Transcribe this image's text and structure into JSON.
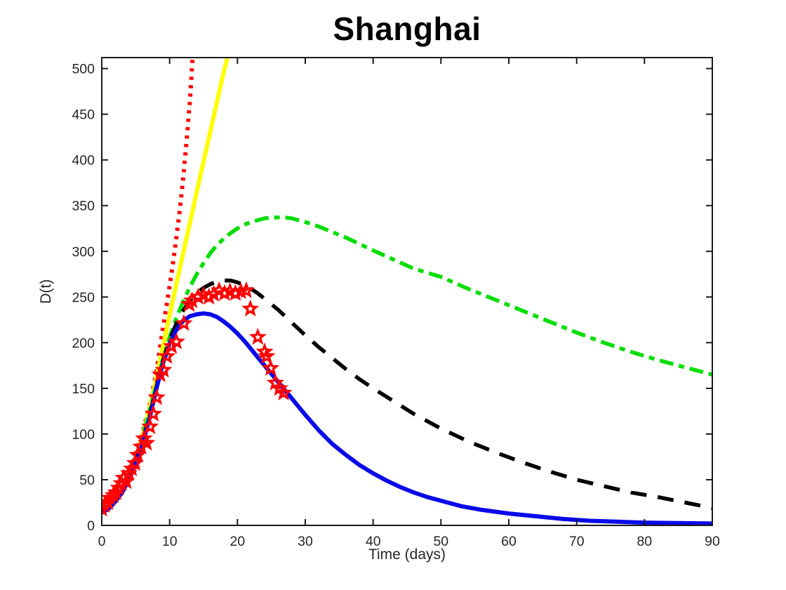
{
  "chart": {
    "title": "Shanghai",
    "xlabel": "Time (days)",
    "ylabel": "D(t)"
  },
  "chart_data": {
    "type": "line",
    "title": "Shanghai",
    "xlabel": "Time (days)",
    "ylabel": "D(t)",
    "xlim": [
      0,
      90
    ],
    "ylim": [
      0,
      512
    ],
    "xticks": [
      0,
      10,
      20,
      30,
      40,
      50,
      60,
      70,
      80,
      90
    ],
    "yticks": [
      0,
      50,
      100,
      150,
      200,
      250,
      300,
      350,
      400,
      450,
      500
    ],
    "grid": false,
    "legend": "none",
    "box": true,
    "tick_direction": "in",
    "axis_color": "#1a1a1a",
    "series": [
      {
        "name": "red-dotted-model",
        "color": "#ff0000",
        "style": "dotted",
        "width": 6,
        "points": [
          [
            0,
            16
          ],
          [
            1,
            21
          ],
          [
            2,
            29
          ],
          [
            3,
            41
          ],
          [
            4,
            57
          ],
          [
            5,
            77
          ],
          [
            6,
            101
          ],
          [
            7,
            130
          ],
          [
            8,
            165
          ],
          [
            9,
            215
          ],
          [
            10,
            262
          ],
          [
            10.5,
            287
          ],
          [
            11,
            315
          ],
          [
            11.5,
            345
          ],
          [
            12,
            380
          ],
          [
            12.5,
            420
          ],
          [
            13,
            465
          ],
          [
            13.4,
            513
          ]
        ]
      },
      {
        "name": "yellow-solid-model",
        "color": "#ffff00",
        "style": "solid",
        "width": 6,
        "points": [
          [
            0,
            15
          ],
          [
            1,
            19
          ],
          [
            2,
            27
          ],
          [
            3,
            38
          ],
          [
            4,
            54
          ],
          [
            5,
            74
          ],
          [
            6,
            98
          ],
          [
            7,
            127
          ],
          [
            8,
            160
          ],
          [
            9,
            195
          ],
          [
            10,
            230
          ],
          [
            11,
            264
          ],
          [
            12,
            298
          ],
          [
            13,
            331
          ],
          [
            14,
            365
          ],
          [
            15,
            398
          ],
          [
            16,
            431
          ],
          [
            17,
            464
          ],
          [
            18,
            497
          ],
          [
            18.6,
            514
          ]
        ]
      },
      {
        "name": "green-dashdot-model",
        "color": "#00dd00",
        "style": "dashdot",
        "width": 5.5,
        "points": [
          [
            0,
            15
          ],
          [
            1,
            20
          ],
          [
            2,
            29
          ],
          [
            3,
            40
          ],
          [
            4,
            55
          ],
          [
            5,
            74
          ],
          [
            6,
            97
          ],
          [
            7,
            124
          ],
          [
            8,
            153
          ],
          [
            9,
            181
          ],
          [
            10,
            206
          ],
          [
            11,
            227
          ],
          [
            12,
            245
          ],
          [
            13,
            261
          ],
          [
            14,
            275
          ],
          [
            15,
            287
          ],
          [
            16,
            298
          ],
          [
            17,
            307
          ],
          [
            18,
            314
          ],
          [
            19,
            320
          ],
          [
            20,
            325
          ],
          [
            21,
            329
          ],
          [
            22,
            332
          ],
          [
            23,
            334
          ],
          [
            24,
            336
          ],
          [
            25,
            337
          ],
          [
            26,
            337
          ],
          [
            27,
            337
          ],
          [
            28,
            336
          ],
          [
            29,
            334
          ],
          [
            30,
            332
          ],
          [
            32,
            327
          ],
          [
            34,
            321
          ],
          [
            36,
            315
          ],
          [
            38,
            308
          ],
          [
            40,
            301
          ],
          [
            43,
            291
          ],
          [
            46,
            281
          ],
          [
            50,
            272
          ],
          [
            54,
            259
          ],
          [
            58,
            247
          ],
          [
            62,
            235
          ],
          [
            66,
            223
          ],
          [
            70,
            211
          ],
          [
            74,
            200
          ],
          [
            78,
            190
          ],
          [
            82,
            181
          ],
          [
            86,
            173
          ],
          [
            90,
            165
          ]
        ]
      },
      {
        "name": "black-dashed-model",
        "color": "#000000",
        "style": "dashed",
        "width": 5.5,
        "points": [
          [
            0,
            15
          ],
          [
            1,
            20
          ],
          [
            2,
            28
          ],
          [
            3,
            38
          ],
          [
            4,
            52
          ],
          [
            5,
            70
          ],
          [
            6,
            92
          ],
          [
            7,
            119
          ],
          [
            8,
            150
          ],
          [
            9,
            180
          ],
          [
            10,
            203
          ],
          [
            11,
            221
          ],
          [
            12,
            235
          ],
          [
            13,
            246
          ],
          [
            14,
            254
          ],
          [
            15,
            260
          ],
          [
            16,
            264
          ],
          [
            17,
            267
          ],
          [
            18,
            268
          ],
          [
            19,
            268
          ],
          [
            20,
            266
          ],
          [
            21,
            263
          ],
          [
            22,
            259
          ],
          [
            23,
            254
          ],
          [
            24,
            248
          ],
          [
            25,
            242
          ],
          [
            26,
            236
          ],
          [
            27,
            229
          ],
          [
            28,
            222
          ],
          [
            29,
            215
          ],
          [
            30,
            208
          ],
          [
            32,
            195
          ],
          [
            34,
            183
          ],
          [
            36,
            171
          ],
          [
            38,
            160
          ],
          [
            40,
            150
          ],
          [
            43,
            136
          ],
          [
            46,
            122
          ],
          [
            50,
            106
          ],
          [
            54,
            92
          ],
          [
            58,
            80
          ],
          [
            62,
            69
          ],
          [
            66,
            59
          ],
          [
            70,
            50
          ],
          [
            74,
            43
          ],
          [
            78,
            36
          ],
          [
            82,
            31
          ],
          [
            86,
            25
          ],
          [
            90,
            19
          ]
        ]
      },
      {
        "name": "blue-solid-model",
        "color": "#0a0ae8",
        "style": "solid",
        "width": 6,
        "points": [
          [
            0,
            14
          ],
          [
            1,
            18
          ],
          [
            2,
            26
          ],
          [
            3,
            36
          ],
          [
            4,
            50
          ],
          [
            5,
            67
          ],
          [
            6,
            89
          ],
          [
            7,
            116
          ],
          [
            8,
            148
          ],
          [
            9,
            177
          ],
          [
            10,
            199
          ],
          [
            11,
            214
          ],
          [
            12,
            224
          ],
          [
            13,
            229
          ],
          [
            14,
            231
          ],
          [
            15,
            232
          ],
          [
            16,
            231
          ],
          [
            17,
            228
          ],
          [
            18,
            223
          ],
          [
            19,
            217
          ],
          [
            20,
            210
          ],
          [
            21,
            202
          ],
          [
            22,
            193
          ],
          [
            23,
            184
          ],
          [
            24,
            175
          ],
          [
            25,
            166
          ],
          [
            26,
            157
          ],
          [
            27,
            148
          ],
          [
            28,
            139
          ],
          [
            29,
            130
          ],
          [
            30,
            121
          ],
          [
            32,
            104
          ],
          [
            34,
            89
          ],
          [
            36,
            77
          ],
          [
            38,
            66
          ],
          [
            40,
            57
          ],
          [
            42,
            49
          ],
          [
            44,
            42
          ],
          [
            46,
            36
          ],
          [
            48,
            31
          ],
          [
            50,
            27
          ],
          [
            53,
            21
          ],
          [
            56,
            17
          ],
          [
            60,
            13
          ],
          [
            64,
            10
          ],
          [
            68,
            7
          ],
          [
            72,
            5
          ],
          [
            76,
            4
          ],
          [
            80,
            3
          ],
          [
            85,
            2.5
          ],
          [
            90,
            2
          ]
        ]
      }
    ],
    "scatter": {
      "name": "reported-data-points",
      "marker": "pentagram-open",
      "color": "#ff0000",
      "marker_outer_radius": 8.8,
      "marker_inner_radius": 3.8,
      "marker_stroke_width": 3.2,
      "points": [
        [
          0,
          18
        ],
        [
          0.4,
          22
        ],
        [
          0.9,
          25
        ],
        [
          1.2,
          30
        ],
        [
          1.7,
          33
        ],
        [
          2.1,
          36
        ],
        [
          2.5,
          41
        ],
        [
          2.9,
          46
        ],
        [
          3.2,
          52
        ],
        [
          3.6,
          48
        ],
        [
          4,
          57
        ],
        [
          4.4,
          62
        ],
        [
          4.9,
          68
        ],
        [
          5.3,
          77
        ],
        [
          5.8,
          86
        ],
        [
          6.2,
          95
        ],
        [
          6.6,
          90
        ],
        [
          7.1,
          108
        ],
        [
          7.6,
          122
        ],
        [
          8.1,
          140
        ],
        [
          8.6,
          165
        ],
        [
          9.1,
          170
        ],
        [
          9.6,
          185
        ],
        [
          10.3,
          196
        ],
        [
          11,
          201
        ],
        [
          12.1,
          221
        ],
        [
          12.9,
          242
        ],
        [
          13.3,
          246
        ],
        [
          14.2,
          250
        ],
        [
          15,
          252
        ],
        [
          15.8,
          250
        ],
        [
          16.5,
          253
        ],
        [
          17.3,
          257
        ],
        [
          18.1,
          254
        ],
        [
          18.9,
          256
        ],
        [
          19.7,
          254
        ],
        [
          20.5,
          256
        ],
        [
          21.3,
          257
        ],
        [
          21.9,
          237
        ],
        [
          23,
          206
        ],
        [
          24,
          190
        ],
        [
          24.3,
          185
        ],
        [
          24.9,
          172
        ],
        [
          25.6,
          156
        ],
        [
          26.2,
          150
        ],
        [
          26.8,
          145
        ]
      ]
    }
  }
}
